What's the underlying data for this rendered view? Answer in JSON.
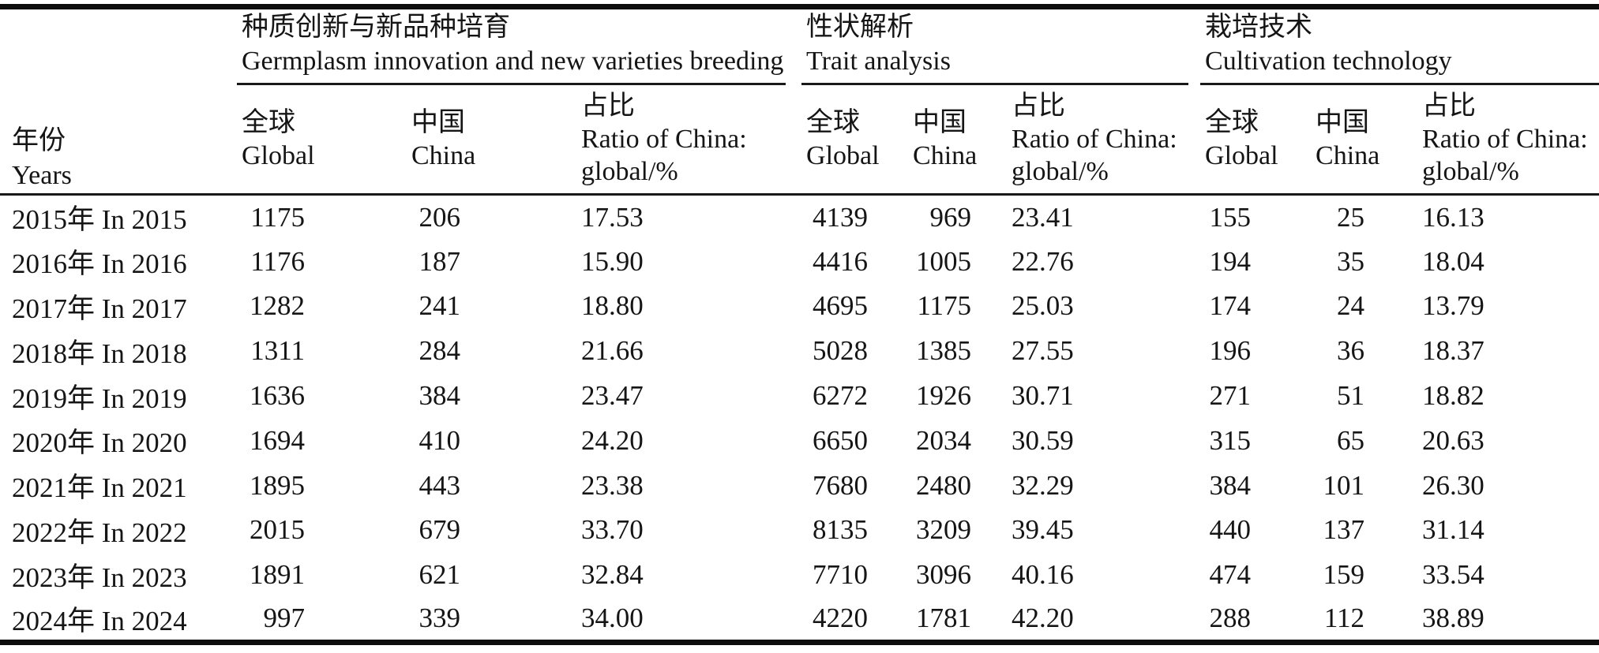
{
  "colors": {
    "background": "#ffffff",
    "text": "#151515",
    "rule": "#0d0d0d"
  },
  "table": {
    "year_header": {
      "zh": "年份",
      "en": "Years"
    },
    "groups": [
      {
        "zh": "种质创新与新品种培育",
        "en": "Germplasm innovation and new varieties breeding"
      },
      {
        "zh": "性状解析",
        "en": "Trait analysis"
      },
      {
        "zh": "栽培技术",
        "en": "Cultivation technology"
      }
    ],
    "sub_headers": {
      "global": {
        "zh": "全球",
        "en": "Global"
      },
      "china": {
        "zh": "中国",
        "en": "China"
      },
      "ratio": {
        "zh": "占比",
        "en_line1": "Ratio of China:",
        "en_line2": "global/%"
      }
    },
    "rows": [
      {
        "year": "2015年 In 2015",
        "g1": [
          "1175",
          "206",
          "17.53"
        ],
        "g2": [
          "4139",
          "969",
          "23.41"
        ],
        "g3": [
          "155",
          "25",
          "16.13"
        ]
      },
      {
        "year": "2016年 In 2016",
        "g1": [
          "1176",
          "187",
          "15.90"
        ],
        "g2": [
          "4416",
          "1005",
          "22.76"
        ],
        "g3": [
          "194",
          "35",
          "18.04"
        ]
      },
      {
        "year": "2017年 In 2017",
        "g1": [
          "1282",
          "241",
          "18.80"
        ],
        "g2": [
          "4695",
          "1175",
          "25.03"
        ],
        "g3": [
          "174",
          "24",
          "13.79"
        ]
      },
      {
        "year": "2018年 In 2018",
        "g1": [
          "1311",
          "284",
          "21.66"
        ],
        "g2": [
          "5028",
          "1385",
          "27.55"
        ],
        "g3": [
          "196",
          "36",
          "18.37"
        ]
      },
      {
        "year": "2019年 In 2019",
        "g1": [
          "1636",
          "384",
          "23.47"
        ],
        "g2": [
          "6272",
          "1926",
          "30.71"
        ],
        "g3": [
          "271",
          "51",
          "18.82"
        ]
      },
      {
        "year": "2020年 In 2020",
        "g1": [
          "1694",
          "410",
          "24.20"
        ],
        "g2": [
          "6650",
          "2034",
          "30.59"
        ],
        "g3": [
          "315",
          "65",
          "20.63"
        ]
      },
      {
        "year": "2021年 In 2021",
        "g1": [
          "1895",
          "443",
          "23.38"
        ],
        "g2": [
          "7680",
          "2480",
          "32.29"
        ],
        "g3": [
          "384",
          "101",
          "26.30"
        ]
      },
      {
        "year": "2022年 In 2022",
        "g1": [
          "2015",
          "679",
          "33.70"
        ],
        "g2": [
          "8135",
          "3209",
          "39.45"
        ],
        "g3": [
          "440",
          "137",
          "31.14"
        ]
      },
      {
        "year": "2023年 In 2023",
        "g1": [
          "1891",
          "621",
          "32.84"
        ],
        "g2": [
          "7710",
          "3096",
          "40.16"
        ],
        "g3": [
          "474",
          "159",
          "33.54"
        ]
      },
      {
        "year": "2024年 In 2024",
        "g1": [
          "997",
          "339",
          "34.00"
        ],
        "g2": [
          "4220",
          "1781",
          "42.20"
        ],
        "g3": [
          "288",
          "112",
          "38.89"
        ]
      }
    ]
  }
}
